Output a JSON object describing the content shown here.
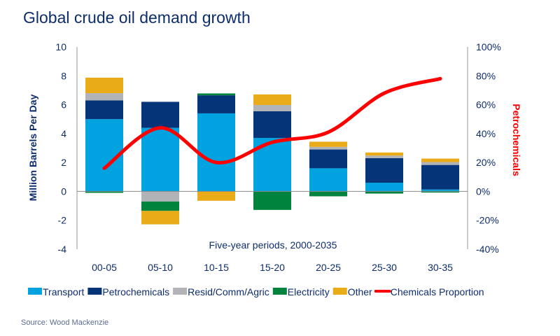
{
  "chart_data": {
    "type": "bar",
    "title": "Global crude oil demand growth",
    "xlabel": "Five-year periods, 2000-2035",
    "ylabel": "Million Barrels Per Day",
    "y2label": "Petrochemicals",
    "ylim": [
      -4,
      10
    ],
    "yticks": [
      -4,
      -2,
      0,
      2,
      4,
      6,
      8,
      10
    ],
    "y2lim": [
      -40,
      100
    ],
    "y2ticks": [
      "-40%",
      "-20%",
      "0%",
      "20%",
      "40%",
      "60%",
      "80%",
      "100%"
    ],
    "categories": [
      "00-05",
      "05-10",
      "10-15",
      "15-20",
      "20-25",
      "25-30",
      "30-35"
    ],
    "stacked": true,
    "series": [
      {
        "name": "Transport",
        "color": "#00a3e0",
        "values": [
          5.0,
          4.4,
          5.4,
          3.7,
          1.6,
          0.6,
          0.13
        ]
      },
      {
        "name": "Petrochemicals",
        "color": "#063478",
        "values": [
          1.3,
          1.8,
          1.25,
          1.85,
          1.3,
          1.7,
          1.7
        ]
      },
      {
        "name": "Resid/Comm/Agric",
        "color": "#b1b3b6",
        "values": [
          0.5,
          -0.7,
          0,
          0.43,
          0.18,
          0.18,
          0.2
        ]
      },
      {
        "name": "Electricity",
        "color": "#00843d",
        "values": [
          -0.1,
          -0.65,
          0.13,
          -1.28,
          -0.34,
          -0.15,
          -0.08
        ]
      },
      {
        "name": "Other",
        "color": "#eaab18",
        "values": [
          1.07,
          -0.93,
          -0.65,
          0.73,
          0.36,
          0.21,
          0.24
        ]
      }
    ],
    "line": {
      "name": "Chemicals Proportion",
      "color": "#ff0000",
      "axis": "right",
      "values": [
        16,
        44,
        20,
        34,
        41,
        68,
        78
      ]
    },
    "legend_position": "bottom",
    "grid": false
  },
  "source": "Source: Wood Mackenzie"
}
